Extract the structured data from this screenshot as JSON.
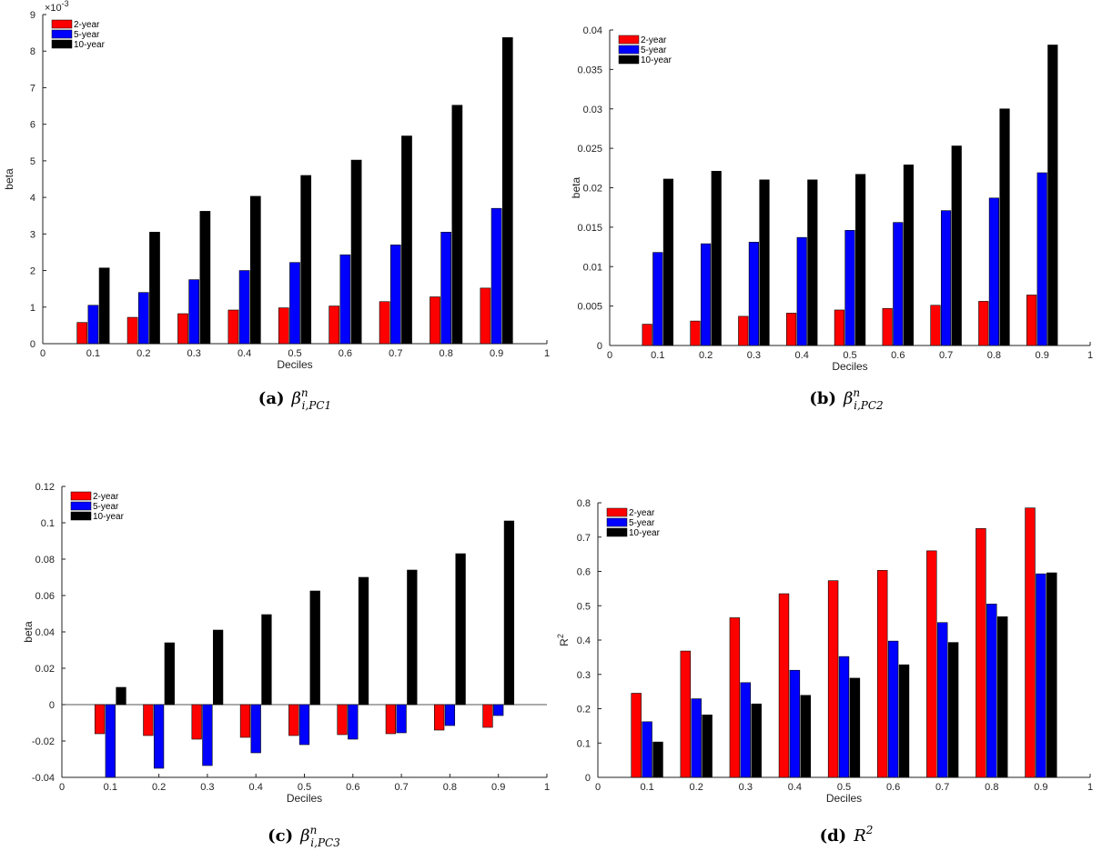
{
  "chart_data": [
    {
      "type": "bar",
      "caption_label": "(a)",
      "caption_math": "β",
      "caption_sup": "n",
      "caption_sub": "i,PC1",
      "xlabel": "Deciles",
      "ylabel": "beta",
      "xlim": [
        0,
        1
      ],
      "ylim": [
        0,
        9
      ],
      "exponent_label": "×10",
      "exponent_power": "-3",
      "xticks": [
        "0",
        "0.1",
        "0.2",
        "0.3",
        "0.4",
        "0.5",
        "0.6",
        "0.7",
        "0.8",
        "0.9",
        "1"
      ],
      "yticks": [
        "0",
        "1",
        "2",
        "3",
        "4",
        "5",
        "6",
        "7",
        "8",
        "9"
      ],
      "ytick_values": [
        0,
        1,
        2,
        3,
        4,
        5,
        6,
        7,
        8,
        9
      ],
      "legend_position": "top-left",
      "x": [
        0.1,
        0.2,
        0.3,
        0.4,
        0.5,
        0.6,
        0.7,
        0.8,
        0.9
      ],
      "series": [
        {
          "name": "2-year",
          "color": "#ff0000",
          "values": [
            0.58,
            0.72,
            0.82,
            0.92,
            0.98,
            1.03,
            1.15,
            1.28,
            1.52
          ]
        },
        {
          "name": "5-year",
          "color": "#0000ff",
          "values": [
            1.05,
            1.4,
            1.75,
            2.0,
            2.22,
            2.43,
            2.7,
            3.05,
            3.7
          ]
        },
        {
          "name": "10-year",
          "color": "#000000",
          "values": [
            2.07,
            3.05,
            3.62,
            4.03,
            4.6,
            5.02,
            5.68,
            6.52,
            8.37
          ]
        }
      ]
    },
    {
      "type": "bar",
      "caption_label": "(b)",
      "caption_math": "β",
      "caption_sup": "n",
      "caption_sub": "i,PC2",
      "xlabel": "Deciles",
      "ylabel": "beta",
      "xlim": [
        0,
        1
      ],
      "ylim": [
        0,
        0.04
      ],
      "exponent_label": "",
      "exponent_power": "",
      "xticks": [
        "0",
        "0.1",
        "0.2",
        "0.3",
        "0.4",
        "0.5",
        "0.6",
        "0.7",
        "0.8",
        "0.9",
        "1"
      ],
      "yticks": [
        "0",
        "0.005",
        "0.01",
        "0.015",
        "0.02",
        "0.025",
        "0.03",
        "0.035",
        "0.04"
      ],
      "ytick_values": [
        0,
        0.005,
        0.01,
        0.015,
        0.02,
        0.025,
        0.03,
        0.035,
        0.04
      ],
      "legend_position": "top-left",
      "x": [
        0.1,
        0.2,
        0.3,
        0.4,
        0.5,
        0.6,
        0.7,
        0.8,
        0.9
      ],
      "series": [
        {
          "name": "2-year",
          "color": "#ff0000",
          "values": [
            0.0027,
            0.0031,
            0.0037,
            0.0041,
            0.0045,
            0.0047,
            0.0051,
            0.0056,
            0.0064
          ]
        },
        {
          "name": "5-year",
          "color": "#0000ff",
          "values": [
            0.0118,
            0.0129,
            0.0131,
            0.0137,
            0.0146,
            0.0156,
            0.0171,
            0.0187,
            0.0219
          ]
        },
        {
          "name": "10-year",
          "color": "#000000",
          "values": [
            0.0211,
            0.0221,
            0.021,
            0.021,
            0.0217,
            0.0229,
            0.0253,
            0.03,
            0.0381
          ]
        }
      ]
    },
    {
      "type": "bar",
      "caption_label": "(c)",
      "caption_math": "β",
      "caption_sup": "n",
      "caption_sub": "i,PC3",
      "xlabel": "Deciles",
      "ylabel": "beta",
      "xlim": [
        0,
        1
      ],
      "ylim": [
        -0.04,
        0.12
      ],
      "exponent_label": "",
      "exponent_power": "",
      "xticks": [
        "0",
        "0.1",
        "0.2",
        "0.3",
        "0.4",
        "0.5",
        "0.6",
        "0.7",
        "0.8",
        "0.9",
        "1"
      ],
      "yticks": [
        "-0.04",
        "-0.02",
        "0",
        "0.02",
        "0.04",
        "0.06",
        "0.08",
        "0.1",
        "0.12"
      ],
      "ytick_values": [
        -0.04,
        -0.02,
        0,
        0.02,
        0.04,
        0.06,
        0.08,
        0.1,
        0.12
      ],
      "legend_position": "top-left",
      "x": [
        0.1,
        0.2,
        0.3,
        0.4,
        0.5,
        0.6,
        0.7,
        0.8,
        0.9
      ],
      "series": [
        {
          "name": "2-year",
          "color": "#ff0000",
          "values": [
            -0.016,
            -0.017,
            -0.019,
            -0.018,
            -0.017,
            -0.0165,
            -0.016,
            -0.014,
            -0.0125
          ]
        },
        {
          "name": "5-year",
          "color": "#0000ff",
          "values": [
            -0.04,
            -0.035,
            -0.0335,
            -0.0265,
            -0.022,
            -0.019,
            -0.0155,
            -0.0115,
            -0.006
          ]
        },
        {
          "name": "10-year",
          "color": "#000000",
          "values": [
            0.0095,
            0.034,
            0.041,
            0.0495,
            0.0625,
            0.07,
            0.074,
            0.083,
            0.101
          ]
        }
      ]
    },
    {
      "type": "bar",
      "caption_label": "(d)",
      "caption_math": "R",
      "caption_sup": "2",
      "caption_sub": "",
      "xlabel": "Deciles",
      "ylabel": "R",
      "ylabel_sup": "2",
      "xlim": [
        0,
        1
      ],
      "ylim": [
        0,
        0.8
      ],
      "exponent_label": "",
      "exponent_power": "",
      "xticks": [
        "0",
        "0.1",
        "0.2",
        "0.3",
        "0.4",
        "0.5",
        "0.6",
        "0.7",
        "0.8",
        "0.9",
        "1"
      ],
      "yticks": [
        "0",
        "0.1",
        "0.2",
        "0.3",
        "0.4",
        "0.5",
        "0.6",
        "0.7",
        "0.8"
      ],
      "ytick_values": [
        0,
        0.1,
        0.2,
        0.3,
        0.4,
        0.5,
        0.6,
        0.7,
        0.8
      ],
      "legend_position": "top-left",
      "x": [
        0.1,
        0.2,
        0.3,
        0.4,
        0.5,
        0.6,
        0.7,
        0.8,
        0.9
      ],
      "series": [
        {
          "name": "2-year",
          "color": "#ff0000",
          "values": [
            0.245,
            0.368,
            0.465,
            0.535,
            0.573,
            0.603,
            0.66,
            0.725,
            0.785
          ]
        },
        {
          "name": "5-year",
          "color": "#0000ff",
          "values": [
            0.162,
            0.229,
            0.276,
            0.312,
            0.352,
            0.397,
            0.451,
            0.505,
            0.593
          ]
        },
        {
          "name": "10-year",
          "color": "#000000",
          "values": [
            0.103,
            0.182,
            0.214,
            0.239,
            0.289,
            0.328,
            0.393,
            0.468,
            0.596
          ]
        }
      ]
    }
  ]
}
